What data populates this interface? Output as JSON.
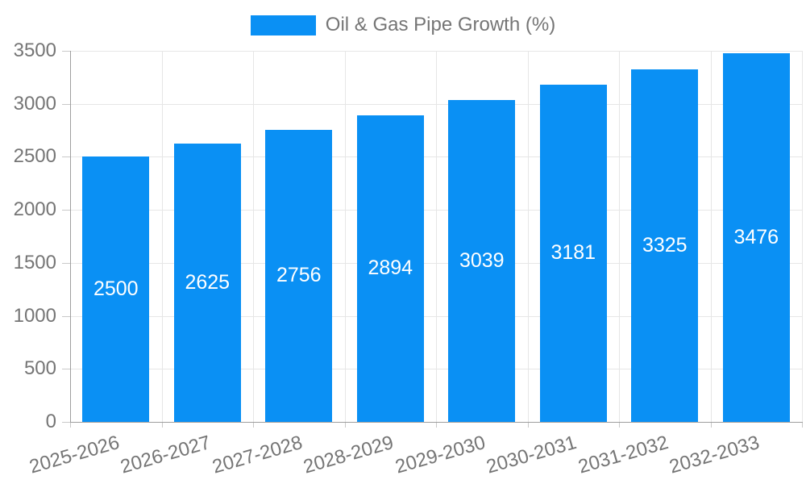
{
  "chart_data": {
    "type": "bar",
    "title": "Oil & Gas Pipe Growth (%)",
    "legend": {
      "label": "Oil & Gas Pipe Growth (%)",
      "position": "top-center"
    },
    "categories": [
      "2025-2026",
      "2026-2027",
      "2027-2028",
      "2028-2029",
      "2029-2030",
      "2030-2031",
      "2031-2032",
      "2032-2033"
    ],
    "values": [
      2500,
      2625,
      2756,
      2894,
      3039,
      3181,
      3325,
      3476
    ],
    "xlabel": "",
    "ylabel": "",
    "ylim": [
      0,
      3500
    ],
    "yticks": [
      0,
      500,
      1000,
      1500,
      2000,
      2500,
      3000,
      3500
    ],
    "grid": true,
    "value_labels_position": "inside-center",
    "colors": {
      "bar": "#0a90f4",
      "axis_text": "#757575",
      "grid_line": "#e6e6e6",
      "axis_line": "#9e9e9e",
      "tick_line": "#c9c9c9",
      "value_label": "#ffffff",
      "background": "#ffffff"
    }
  }
}
